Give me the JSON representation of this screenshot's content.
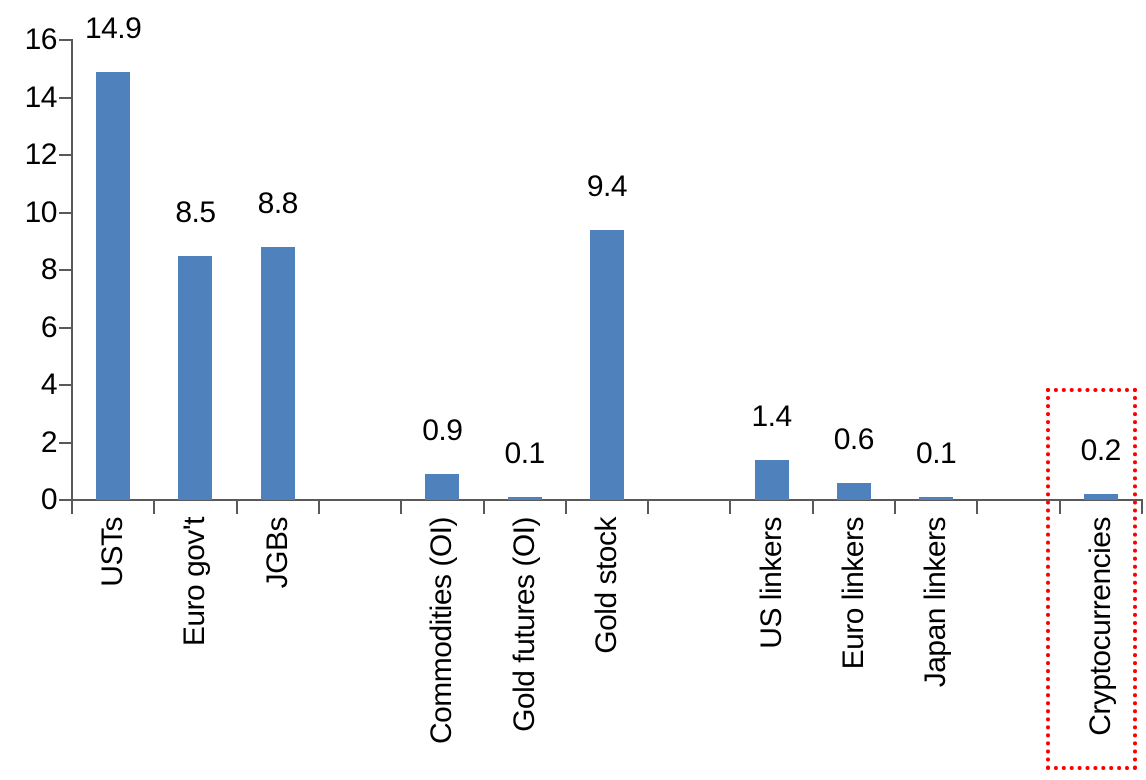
{
  "chart_data": {
    "type": "bar",
    "title": "",
    "xlabel": "",
    "ylabel": "",
    "ylim": [
      0,
      16
    ],
    "ytick_step": 2,
    "ytick_labels": [
      "0",
      "2",
      "4",
      "6",
      "8",
      "10",
      "12",
      "14",
      "16"
    ],
    "grid": false,
    "legend": "none",
    "n_slots": 13,
    "empty_slots": [
      3,
      7,
      11
    ],
    "categories": [
      "USTs",
      "Euro gov't",
      "JGBs",
      "Commodities (OI)",
      "Gold futures (OI)",
      "Gold stock",
      "US linkers",
      "Euro linkers",
      "Japan linkers",
      "Cryptocurrencies"
    ],
    "values": [
      14.9,
      8.5,
      8.8,
      0.9,
      0.1,
      9.4,
      1.4,
      0.6,
      0.1,
      0.2
    ],
    "bars": [
      {
        "label": "USTs",
        "value": 14.9,
        "display_value": "14.9",
        "slot": 0
      },
      {
        "label": "Euro gov't",
        "value": 8.5,
        "display_value": "8.5",
        "slot": 1
      },
      {
        "label": "JGBs",
        "value": 8.8,
        "display_value": "8.8",
        "slot": 2
      },
      {
        "label": "Commodities (OI)",
        "value": 0.9,
        "display_value": "0.9",
        "slot": 4
      },
      {
        "label": "Gold futures (OI)",
        "value": 0.1,
        "display_value": "0.1",
        "slot": 5
      },
      {
        "label": "Gold stock",
        "value": 9.4,
        "display_value": "9.4",
        "slot": 6
      },
      {
        "label": "US linkers",
        "value": 1.4,
        "display_value": "1.4",
        "slot": 8
      },
      {
        "label": "Euro linkers",
        "value": 0.6,
        "display_value": "0.6",
        "slot": 9
      },
      {
        "label": "Japan linkers",
        "value": 0.1,
        "display_value": "0.1",
        "slot": 10
      },
      {
        "label": "Cryptocurrencies",
        "value": 0.2,
        "display_value": "0.2",
        "slot": 12
      }
    ],
    "colors": {
      "bar": "#4F81BD",
      "axis": "#595959",
      "text": "#000000",
      "highlight_border": "#FF0000"
    },
    "highlight": {
      "target": "Cryptocurrencies",
      "style": "dotted",
      "color": "#FF0000"
    }
  }
}
